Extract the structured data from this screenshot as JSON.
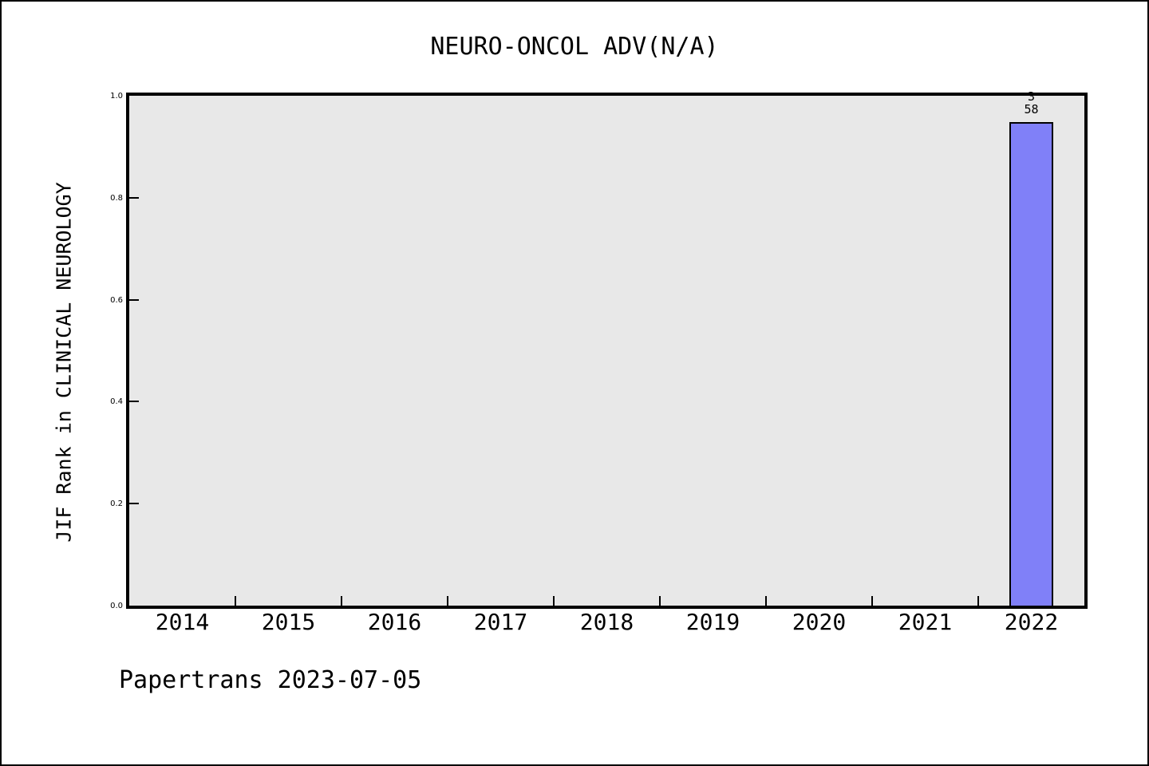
{
  "figure": {
    "title": "NEURO-ONCOL ADV(N/A)",
    "footer": "Papertrans 2023-07-05"
  },
  "chart_data": {
    "type": "bar",
    "title": "NEURO-ONCOL ADV(N/A)",
    "xlabel": "",
    "ylabel": "JIF Rank in CLINICAL NEUROLOGY",
    "categories": [
      "2014",
      "2015",
      "2016",
      "2017",
      "2018",
      "2019",
      "2020",
      "2021",
      "2022"
    ],
    "values": [
      null,
      null,
      null,
      null,
      null,
      null,
      null,
      null,
      0.948
    ],
    "ylim": [
      0.0,
      1.0
    ],
    "yticks": [
      "0.0",
      "0.2",
      "0.4",
      "0.6",
      "0.8",
      "1.0"
    ],
    "grid": false,
    "legend": "none",
    "annotation": {
      "category": "2022",
      "lines": [
        "3",
        "58"
      ]
    },
    "colors": {
      "bar_fill": "#8080f8",
      "bar_edge": "#000000",
      "plot_background": "#e8e8e8",
      "axis": "#000000",
      "figure_background": "#ffffff"
    }
  }
}
